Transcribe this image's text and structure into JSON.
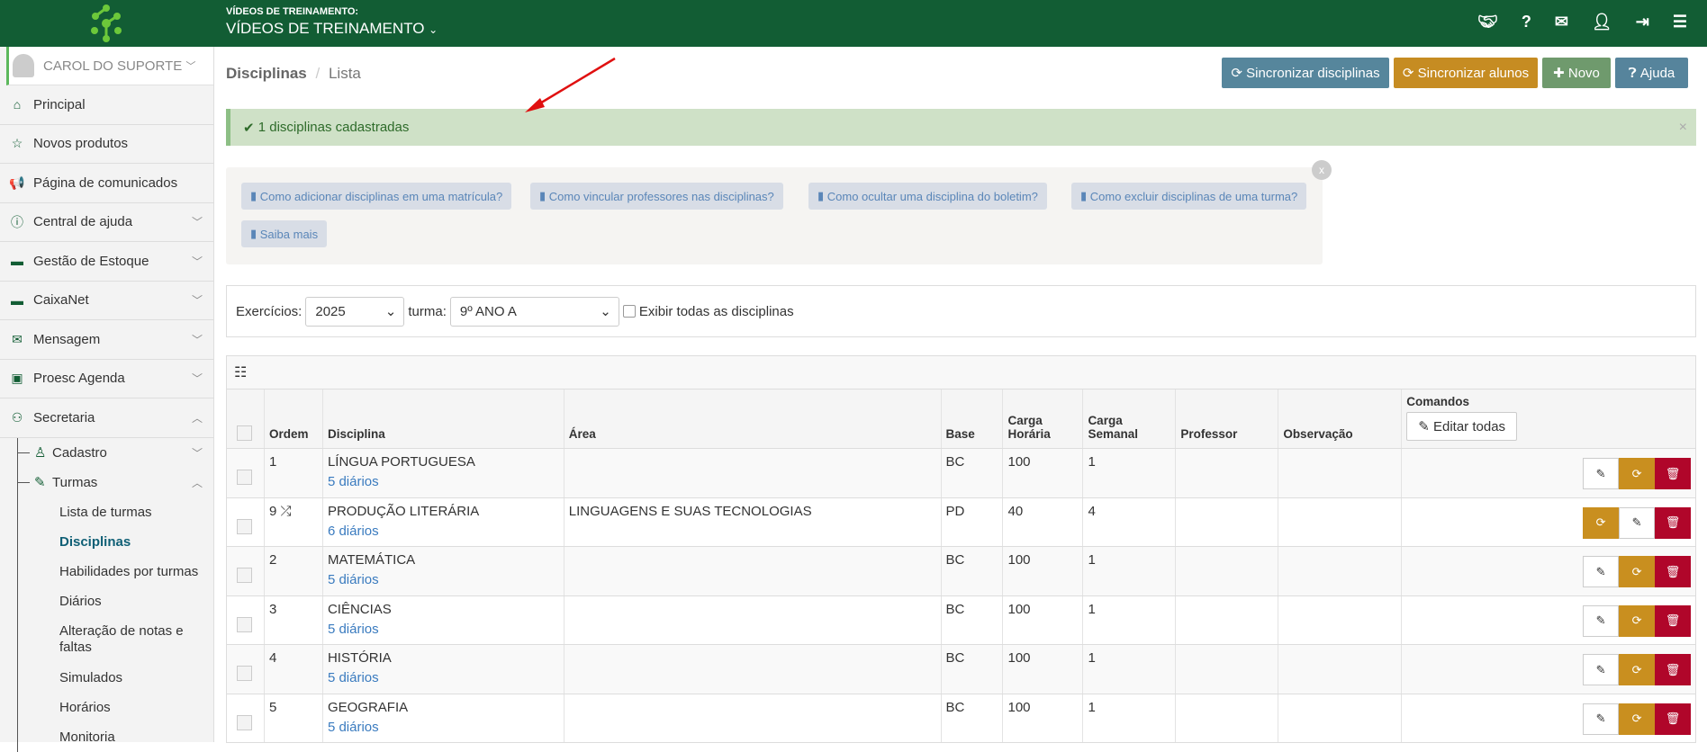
{
  "topbar": {
    "label": "VÍDEOS DE TREINAMENTO:",
    "title": "VÍDEOS DE TREINAMENTO",
    "icons": [
      "handshake-icon",
      "question-icon",
      "envelope-icon",
      "user-icon",
      "sign-out-icon",
      "menu-icon"
    ]
  },
  "sidebar": {
    "user": "CAROL DO SUPORTE",
    "items": [
      {
        "label": "Principal",
        "icon": "⌂",
        "chev": ""
      },
      {
        "label": "Novos produtos",
        "icon": "☆",
        "chev": ""
      },
      {
        "label": "Página de comunicados",
        "icon": "📢",
        "chev": ""
      },
      {
        "label": "Central de ajuda",
        "icon": "ⓘ",
        "chev": "﹀"
      },
      {
        "label": "Gestão de Estoque",
        "icon": "▬",
        "chev": "﹀"
      },
      {
        "label": "CaixaNet",
        "icon": "▬",
        "chev": "﹀"
      },
      {
        "label": "Mensagem",
        "icon": "✉",
        "chev": "﹀"
      },
      {
        "label": "Proesc Agenda",
        "icon": "▣",
        "chev": "﹀"
      },
      {
        "label": "Secretaria",
        "icon": "⚇",
        "chev": "︿"
      }
    ],
    "cadastro": "Cadastro",
    "turmas": "Turmas",
    "turmas_items": [
      "Lista de turmas",
      "Disciplinas",
      "Habilidades por turmas",
      "Diários",
      "Alteração de notas e faltas",
      "Simulados",
      "Horários",
      "Monitoria"
    ]
  },
  "breadcrumb": {
    "title": "Disciplinas",
    "sep": "/",
    "current": "Lista"
  },
  "buttons": {
    "sync_disc": "Sincronizar disciplinas",
    "sync_alunos": "Sincronizar alunos",
    "novo": "Novo",
    "ajuda": "Ajuda"
  },
  "colors": {
    "topbar": "#125d34",
    "sync_disc": "#56869c",
    "sync_alunos": "#c68c22",
    "novo": "#6f9a6d",
    "ajuda": "#56849c",
    "delete": "#b0062a"
  },
  "alert": {
    "text": "1 disciplinas cadastradas",
    "close": "×"
  },
  "help_links": [
    "Como adicionar disciplinas em uma matrícula?",
    "Como vincular professores nas disciplinas?",
    "Como ocultar uma disciplina do boletim?",
    "Como excluir disciplinas de uma turma?",
    "Saiba mais"
  ],
  "filter": {
    "exercicios_label": "Exercícios:",
    "exercicios_value": "2025",
    "turma_label": "turma:",
    "turma_value": "9º ANO A",
    "show_all_label": "Exibir todas as disciplinas"
  },
  "table": {
    "headers": [
      "Ordem",
      "Disciplina",
      "Área",
      "Base",
      "Carga Horária",
      "Carga Semanal",
      "Professor",
      "Observação",
      "Comandos"
    ],
    "edit_all": "Editar todas",
    "rows": [
      {
        "ordem": "1",
        "disciplina": "LÍNGUA PORTUGUESA",
        "diarios": "5 diários",
        "area": "",
        "base": "BC",
        "ch": "100",
        "cs": "1",
        "shuffle": false
      },
      {
        "ordem": "9",
        "disciplina": "PRODUÇÃO LITERÁRIA",
        "diarios": "6 diários",
        "area": "LINGUAGENS E SUAS TECNOLOGIAS",
        "base": "PD",
        "ch": "40",
        "cs": "4",
        "shuffle": true
      },
      {
        "ordem": "2",
        "disciplina": "MATEMÁTICA",
        "diarios": "5 diários",
        "area": "",
        "base": "BC",
        "ch": "100",
        "cs": "1",
        "shuffle": false
      },
      {
        "ordem": "3",
        "disciplina": "CIÊNCIAS",
        "diarios": "5 diários",
        "area": "",
        "base": "BC",
        "ch": "100",
        "cs": "1",
        "shuffle": false
      },
      {
        "ordem": "4",
        "disciplina": "HISTÓRIA",
        "diarios": "5 diários",
        "area": "",
        "base": "BC",
        "ch": "100",
        "cs": "1",
        "shuffle": false
      },
      {
        "ordem": "5",
        "disciplina": "GEOGRAFIA",
        "diarios": "5 diários",
        "area": "",
        "base": "BC",
        "ch": "100",
        "cs": "1",
        "shuffle": false
      }
    ]
  }
}
